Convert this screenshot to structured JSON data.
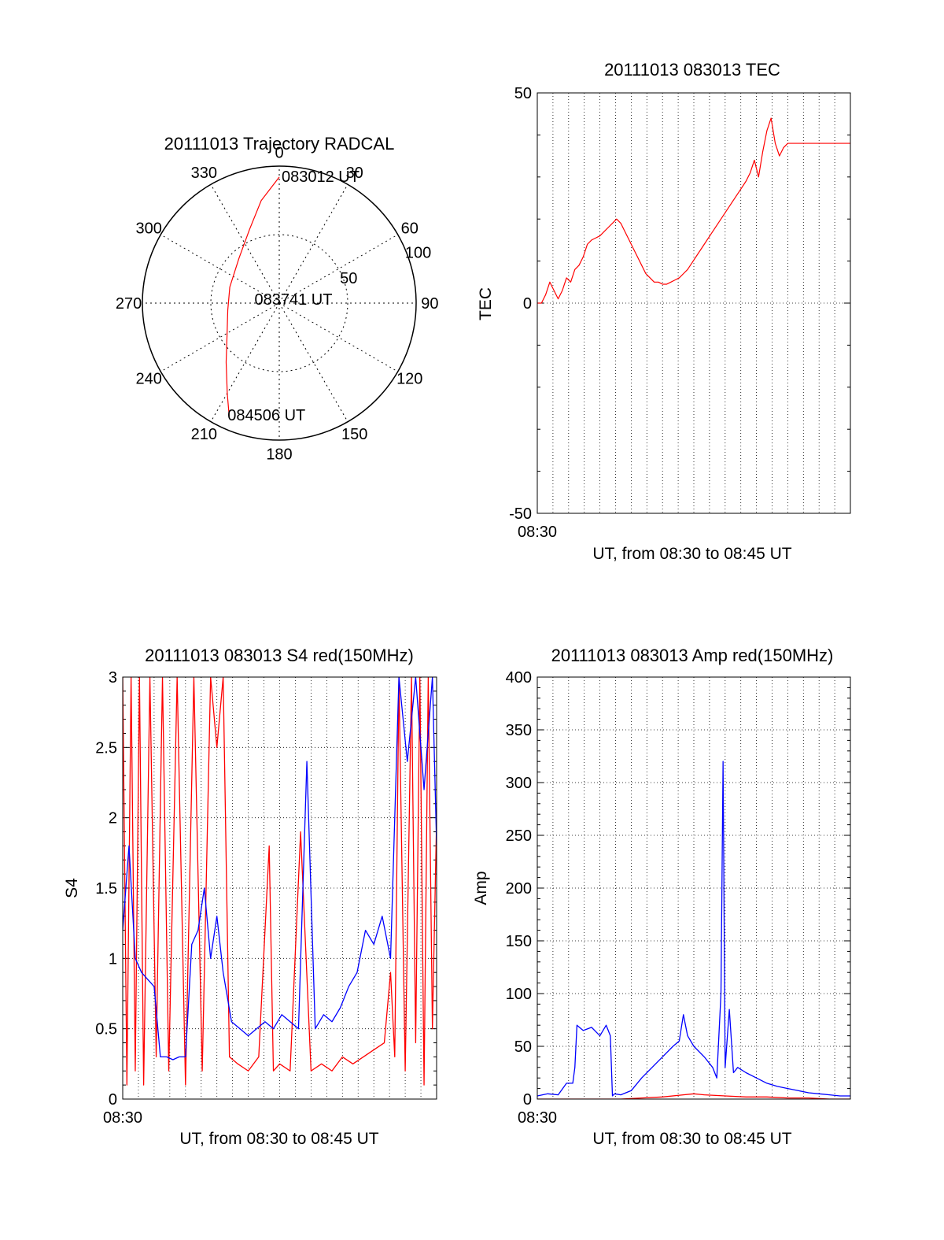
{
  "colors": {
    "red": "#ff0000",
    "blue": "#0000ff",
    "axis": "#000000",
    "grid": "#000000"
  },
  "chart_data": [
    {
      "id": "trajectory",
      "type": "polar",
      "title": "20111013 Trajectory RADCAL",
      "angle_labels": [
        "0",
        "30",
        "60",
        "90",
        "120",
        "150",
        "180",
        "210",
        "240",
        "270",
        "300",
        "330"
      ],
      "angle_values": [
        0,
        30,
        60,
        90,
        120,
        150,
        180,
        210,
        240,
        270,
        300,
        330
      ],
      "radius_range": [
        0,
        100
      ],
      "radius_labels": [
        {
          "value": 50,
          "label": "50"
        },
        {
          "value": 100,
          "label": "100"
        }
      ],
      "grid": true,
      "series": [
        {
          "color": "#ff0000",
          "points": [
            {
              "azimuth": 0,
              "radius": 92
            },
            {
              "azimuth": 350,
              "radius": 76
            },
            {
              "azimuth": 338,
              "radius": 58
            },
            {
              "azimuth": 318,
              "radius": 44
            },
            {
              "azimuth": 288,
              "radius": 38
            },
            {
              "azimuth": 262,
              "radius": 38
            },
            {
              "azimuth": 240,
              "radius": 44
            },
            {
              "azimuth": 222,
              "radius": 58
            },
            {
              "azimuth": 210,
              "radius": 76
            },
            {
              "azimuth": 204,
              "radius": 90
            }
          ]
        }
      ],
      "annotations": [
        {
          "text": "083012 UT",
          "azimuth": 0,
          "radius": 92
        },
        {
          "text": "083741 UT",
          "azimuth": 0,
          "radius": 0
        },
        {
          "text": "084506 UT",
          "azimuth": 204,
          "radius": 90
        }
      ]
    },
    {
      "id": "tec",
      "type": "line",
      "title": "20111013 083013 TEC",
      "xlabel": "UT, from 08:30 to 08:45 UT",
      "ylabel": "TEC",
      "x_tick_label": "08:30",
      "xlim": [
        0,
        15
      ],
      "ylim": [
        -50,
        50
      ],
      "yticks": [
        -50,
        0,
        50
      ],
      "grid": true,
      "series": [
        {
          "color": "#ff0000",
          "x": [
            0,
            0.2,
            0.4,
            0.6,
            0.8,
            1.0,
            1.2,
            1.4,
            1.6,
            1.8,
            2.0,
            2.2,
            2.4,
            2.6,
            2.8,
            3.0,
            3.2,
            3.4,
            3.6,
            3.8,
            4.0,
            4.2,
            4.4,
            4.6,
            4.8,
            5.0,
            5.2,
            5.4,
            5.6,
            5.8,
            6.0,
            6.2,
            6.4,
            6.6,
            6.8,
            7.0,
            7.2,
            7.4,
            7.6,
            7.8,
            8.0,
            8.2,
            8.4,
            8.6,
            8.8,
            9.0,
            9.2,
            9.4,
            9.6,
            9.8,
            10.0,
            10.2,
            10.4,
            10.6,
            10.8,
            11.0,
            11.2,
            11.4,
            11.6,
            11.8,
            12.0,
            12.2,
            12.4,
            12.6,
            12.8,
            13.0,
            13.2,
            13.4,
            13.6,
            13.8,
            14.0,
            14.2,
            14.4,
            14.6,
            14.8,
            15.0
          ],
          "values": [
            0,
            0,
            2,
            5,
            3,
            1,
            3,
            6,
            5,
            8,
            9,
            11,
            14,
            15,
            15.5,
            16,
            17,
            18,
            19,
            20,
            19,
            17,
            15,
            13,
            11,
            9,
            7,
            6,
            5,
            5,
            4.5,
            4.5,
            5,
            5.5,
            6,
            7,
            8,
            9.5,
            11,
            12.5,
            14,
            15.5,
            17,
            18.5,
            20,
            21.5,
            23,
            24.5,
            26,
            27.5,
            29,
            31,
            34,
            30,
            36,
            41,
            44,
            38,
            35,
            37,
            38,
            38,
            38,
            38,
            38,
            38,
            38,
            38,
            38,
            38,
            38,
            38,
            38,
            38,
            38,
            38
          ]
        }
      ]
    },
    {
      "id": "s4",
      "type": "line",
      "title": "20111013 083013 S4 red(150MHz)",
      "xlabel": "UT, from 08:30 to 08:45 UT",
      "ylabel": "S4",
      "x_tick_label": "08:30",
      "xlim": [
        0,
        15
      ],
      "ylim": [
        0,
        3
      ],
      "yticks": [
        0,
        0.5,
        1,
        1.5,
        2,
        2.5,
        3
      ],
      "ytick_labels": [
        "0",
        "0.5",
        "1",
        "1.5",
        "2",
        "2.5",
        "3"
      ],
      "grid": true,
      "series": [
        {
          "color": "#ff0000",
          "x": [
            0.0,
            0.2,
            0.4,
            0.6,
            0.8,
            1.0,
            1.3,
            1.6,
            1.9,
            2.2,
            2.6,
            3.0,
            3.4,
            3.8,
            4.2,
            4.5,
            4.8,
            5.1,
            5.5,
            6.0,
            6.5,
            7.0,
            7.2,
            7.5,
            8.0,
            8.5,
            9.0,
            9.5,
            10.0,
            10.5,
            11.0,
            11.5,
            12.0,
            12.5,
            12.8,
            13.0,
            13.2,
            13.5,
            13.8,
            14.0,
            14.2,
            14.4,
            14.6,
            14.8,
            15.0
          ],
          "values": [
            3,
            0.1,
            3,
            0.2,
            3,
            0.1,
            3,
            0.3,
            3,
            0.2,
            3,
            0.1,
            3,
            0.2,
            3,
            2.5,
            3,
            0.3,
            0.25,
            0.2,
            0.3,
            1.8,
            0.2,
            0.25,
            0.2,
            1.9,
            0.2,
            0.25,
            0.2,
            0.3,
            0.25,
            0.3,
            0.35,
            0.4,
            0.9,
            0.3,
            3,
            0.2,
            3,
            0.4,
            3,
            0.1,
            3,
            0.5,
            2.0
          ]
        },
        {
          "color": "#0000ff",
          "x": [
            0.0,
            0.3,
            0.6,
            0.9,
            1.2,
            1.5,
            1.8,
            2.1,
            2.4,
            2.7,
            3.0,
            3.3,
            3.6,
            3.9,
            4.2,
            4.5,
            4.8,
            5.2,
            5.6,
            6.0,
            6.4,
            6.8,
            7.2,
            7.6,
            8.0,
            8.4,
            8.8,
            9.2,
            9.6,
            10.0,
            10.4,
            10.8,
            11.2,
            11.6,
            12.0,
            12.4,
            12.8,
            13.2,
            13.6,
            14.0,
            14.4,
            14.8,
            15.0
          ],
          "values": [
            1.2,
            1.8,
            1.0,
            0.9,
            0.85,
            0.8,
            0.3,
            0.3,
            0.28,
            0.3,
            0.3,
            1.1,
            1.2,
            1.5,
            1.0,
            1.3,
            0.9,
            0.55,
            0.5,
            0.45,
            0.5,
            0.55,
            0.5,
            0.6,
            0.55,
            0.5,
            2.4,
            0.5,
            0.6,
            0.55,
            0.65,
            0.8,
            0.9,
            1.2,
            1.1,
            1.3,
            1.0,
            3,
            2.4,
            3,
            2.2,
            3,
            1.8
          ]
        }
      ]
    },
    {
      "id": "amp",
      "type": "line",
      "title": "20111013 083013 Amp red(150MHz)",
      "xlabel": "UT, from 08:30 to 08:45 UT",
      "ylabel": "Amp",
      "x_tick_label": "08:30",
      "xlim": [
        0,
        15
      ],
      "ylim": [
        0,
        400
      ],
      "yticks": [
        0,
        50,
        100,
        150,
        200,
        250,
        300,
        350,
        400
      ],
      "ytick_labels": [
        "0",
        "50",
        "100",
        "150",
        "200",
        "250",
        "300",
        "350",
        "400"
      ],
      "grid": true,
      "series": [
        {
          "color": "#ff0000",
          "x": [
            0,
            2,
            4,
            5,
            6,
            7,
            7.5,
            8,
            9,
            10,
            11,
            12,
            13,
            14,
            15
          ],
          "values": [
            0,
            0,
            0,
            1,
            2,
            4,
            5,
            4,
            3,
            2,
            2,
            1,
            1,
            0,
            0
          ]
        },
        {
          "color": "#0000ff",
          "x": [
            0,
            0.5,
            1.0,
            1.4,
            1.7,
            1.8,
            1.9,
            2.2,
            2.6,
            3.0,
            3.3,
            3.5,
            3.6,
            3.7,
            4.0,
            4.5,
            5.0,
            5.5,
            6.0,
            6.5,
            6.8,
            7.0,
            7.2,
            7.5,
            8.0,
            8.4,
            8.6,
            8.8,
            8.9,
            9.0,
            9.2,
            9.4,
            9.6,
            10.0,
            10.5,
            11.0,
            11.5,
            12.0,
            12.5,
            13.0,
            13.5,
            14.0,
            14.5,
            15.0
          ],
          "values": [
            3,
            5,
            4,
            15,
            15,
            30,
            70,
            65,
            68,
            60,
            70,
            60,
            3,
            5,
            4,
            8,
            20,
            30,
            40,
            50,
            55,
            80,
            60,
            50,
            40,
            30,
            20,
            100,
            320,
            30,
            85,
            25,
            30,
            25,
            20,
            15,
            12,
            10,
            8,
            6,
            5,
            4,
            3,
            3
          ]
        }
      ]
    }
  ]
}
